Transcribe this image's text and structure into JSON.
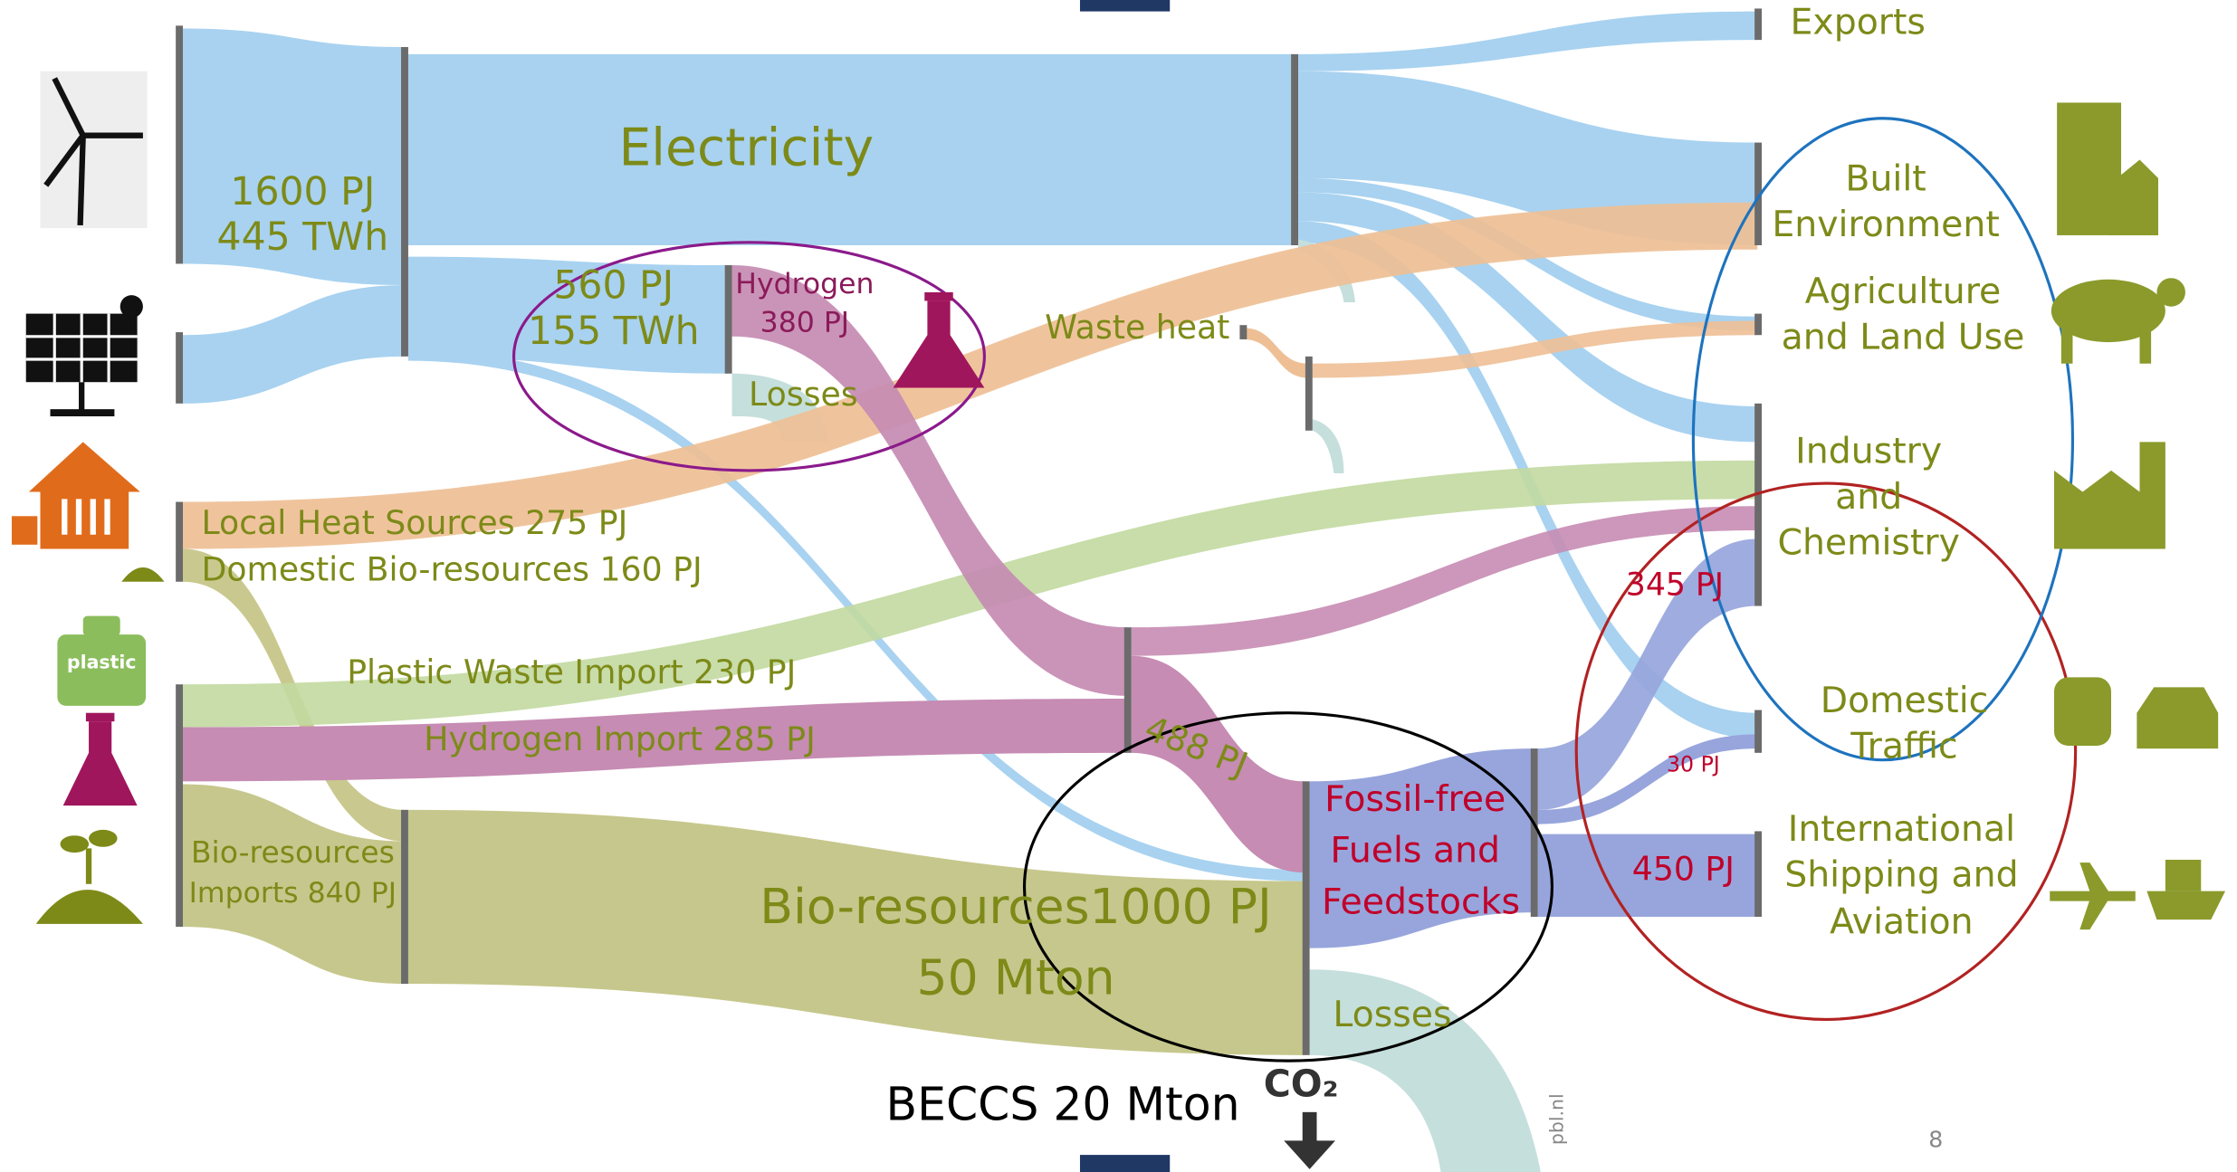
{
  "left_sources": {
    "local_heat": "Local Heat Sources 275 PJ",
    "domestic_bio": "Domestic Bio-resources 160 PJ",
    "plastic_waste": "Plastic Waste Import 230 PJ",
    "hydrogen_import": "Hydrogen Import 285 PJ",
    "bio_imports": [
      "Bio-resources",
      "Imports 840 PJ"
    ]
  },
  "electricity": {
    "title": "Electricity",
    "total": [
      "1600 PJ",
      "445 TWh"
    ],
    "to_hydrogen": [
      "560 PJ",
      "155 TWh"
    ]
  },
  "hydrogen": {
    "title": "Hydrogen",
    "value": "380 PJ",
    "losses": "Losses"
  },
  "waste_heat": "Waste heat",
  "hydrogen_flow": "488 PJ",
  "fuels": {
    "title": [
      "Fossil-free",
      "Fuels and",
      "Feedstocks"
    ],
    "losses": "Losses",
    "to_industry": "345 PJ",
    "to_traffic": "30 PJ",
    "to_shipping": "450 PJ"
  },
  "bio_resources": {
    "total": "Bio-resources1000 PJ",
    "mass": "50 Mton"
  },
  "beccs": "BECCS 20 Mton",
  "co2": "CO₂",
  "destinations": {
    "exports": [
      "Exports"
    ],
    "built_environment": [
      "Built",
      "Environment"
    ],
    "agriculture": [
      "Agriculture",
      "and Land Use"
    ],
    "industry": [
      "Industry",
      "and",
      "Chemistry"
    ],
    "domestic_traffic": [
      "Domestic",
      "Traffic"
    ],
    "international": [
      "International",
      "Shipping and",
      "Aviation"
    ]
  },
  "icons": {
    "plastic": "plastic"
  },
  "source": "pbl.nl",
  "page_number": "8"
}
